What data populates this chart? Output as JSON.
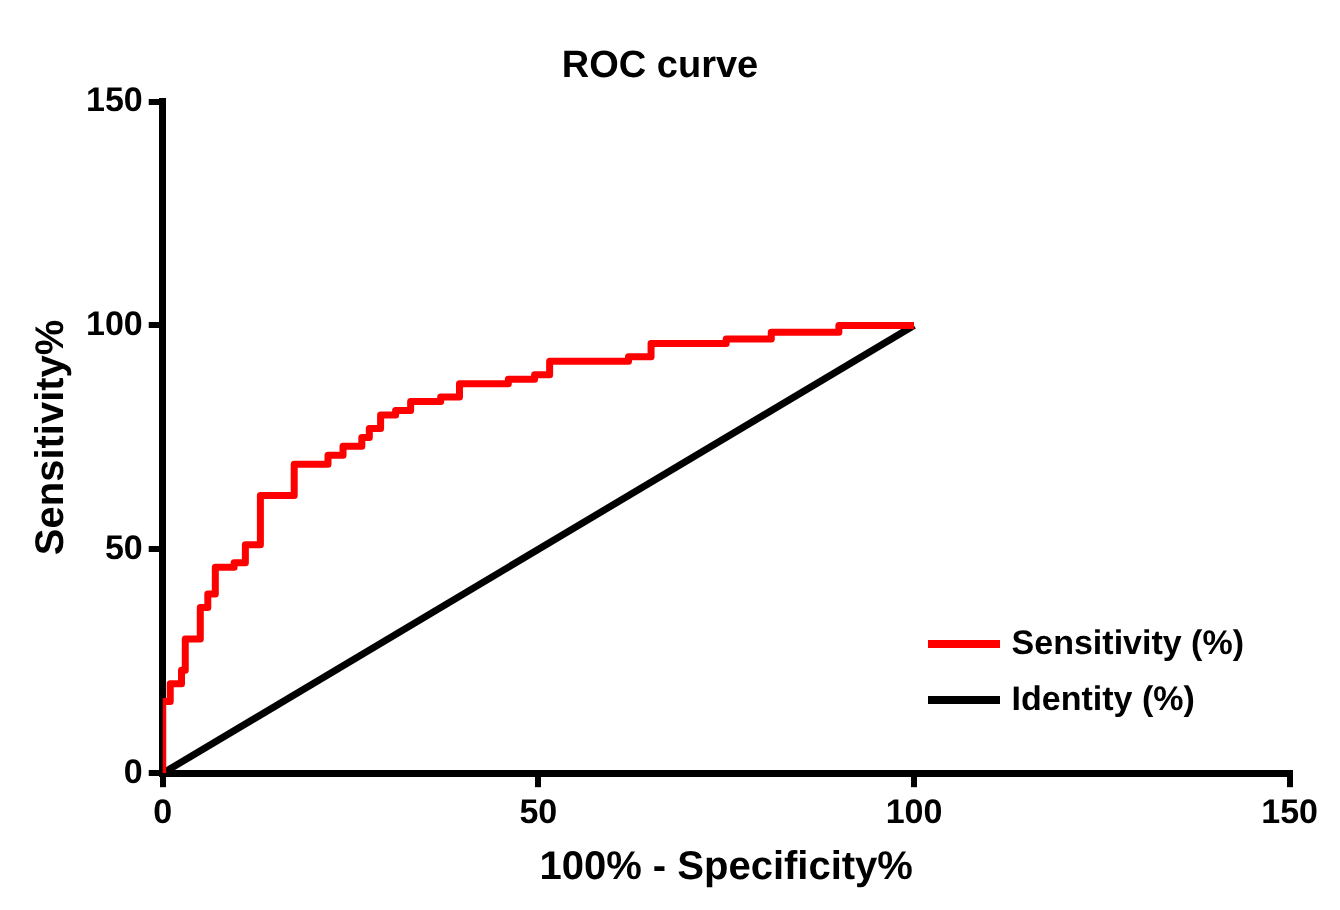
{
  "chart_data": {
    "type": "line",
    "title": "ROC curve",
    "xlabel": "100% - Specificity%",
    "ylabel": "Sensitivity%",
    "xlim": [
      0,
      150
    ],
    "xticks": [
      0,
      50,
      100,
      150
    ],
    "ylim": [
      0,
      150
    ],
    "yticks": [
      0,
      50,
      100,
      150
    ],
    "legend": "bottom right",
    "marker": "none",
    "series": [
      {
        "name": "Sensitivity (%)",
        "color": "#ff0000",
        "x": [
          0,
          0,
          1,
          1,
          2.5,
          2.5,
          3,
          3,
          5,
          5,
          6,
          6,
          7,
          7,
          9.5,
          9.5,
          11,
          11,
          13,
          13,
          17.5,
          17.5,
          22,
          22,
          24,
          24,
          26.5,
          26.5,
          27.5,
          27.5,
          29,
          29,
          31,
          31,
          33,
          33,
          37,
          37,
          39.5,
          39.5,
          46,
          46,
          49.5,
          49.5,
          51.5,
          51.5,
          62,
          62,
          65,
          65,
          75,
          75,
          81,
          81,
          90,
          90,
          100
        ],
        "values": [
          0,
          16,
          16,
          20,
          20,
          23,
          23,
          30,
          30,
          37,
          37,
          40,
          40,
          46,
          46,
          47,
          47,
          51,
          51,
          62,
          62,
          69,
          69,
          71,
          71,
          73,
          73,
          75,
          75,
          77,
          77,
          80,
          80,
          81,
          81,
          83,
          83,
          84,
          84,
          87,
          87,
          88,
          88,
          89,
          89,
          92,
          92,
          93,
          93,
          96,
          96,
          97,
          97,
          98.5,
          98.5,
          100,
          100
        ]
      },
      {
        "name": "Identity (%)",
        "color": "#000000",
        "x": [
          0,
          100
        ],
        "values": [
          0,
          100
        ]
      }
    ]
  }
}
